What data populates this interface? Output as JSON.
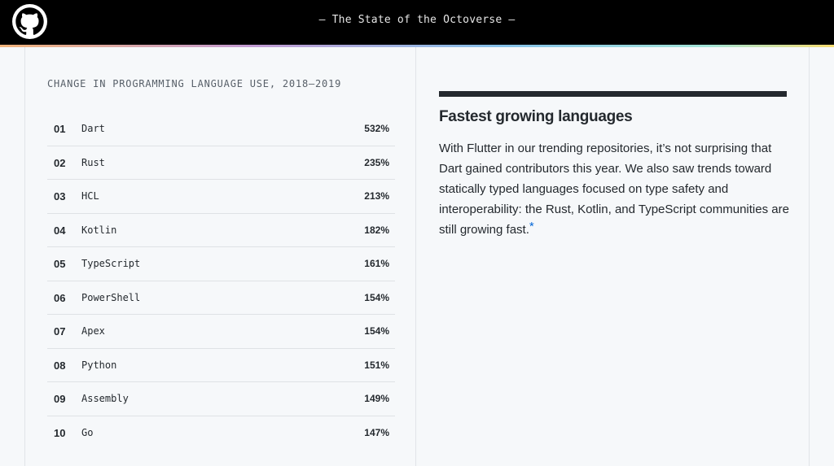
{
  "header": {
    "title": "— The State of the Octoverse —",
    "logo_icon": "github-octocat-icon"
  },
  "table": {
    "title": "CHANGE IN PROGRAMMING LANGUAGE USE, 2018–2019",
    "rows": [
      {
        "rank": "01",
        "name": "Dart",
        "growth": "532%"
      },
      {
        "rank": "02",
        "name": "Rust",
        "growth": "235%"
      },
      {
        "rank": "03",
        "name": "HCL",
        "growth": "213%"
      },
      {
        "rank": "04",
        "name": "Kotlin",
        "growth": "182%"
      },
      {
        "rank": "05",
        "name": "TypeScript",
        "growth": "161%"
      },
      {
        "rank": "06",
        "name": "PowerShell",
        "growth": "154%"
      },
      {
        "rank": "07",
        "name": "Apex",
        "growth": "154%"
      },
      {
        "rank": "08",
        "name": "Python",
        "growth": "151%"
      },
      {
        "rank": "09",
        "name": "Assembly",
        "growth": "149%"
      },
      {
        "rank": "10",
        "name": "Go",
        "growth": "147%"
      }
    ]
  },
  "article": {
    "heading": "Fastest growing languages",
    "body": "With Flutter in our trending repositories, it’s not surprising that Dart gained contributors this year. We also saw trends toward statically typed languages focused on type safety and interoperability: the Rust, Kotlin, and TypeScript communities are still growing fast.",
    "footnote_marker": "*"
  },
  "colors": {
    "header_bg": "#000000",
    "page_bg": "#f6f8fa",
    "text": "#24292e",
    "link": "#0366d6"
  }
}
